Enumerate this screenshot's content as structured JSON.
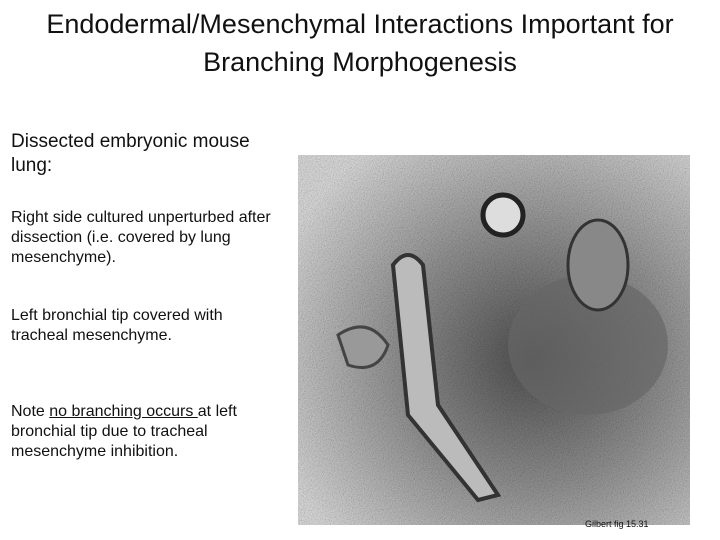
{
  "slide": {
    "title_lines": [
      "Endodermal/Mesenchymal Interactions Important for",
      "Branching Morphogenesis"
    ],
    "intro": "Dissected embryonic mouse lung:",
    "paragraphs": [
      "Right side cultured unperturbed after dissection (i.e. covered by lung mesenchyme).",
      "Left bronchial tip covered with tracheal mesenchyme."
    ],
    "note": {
      "before": "Note ",
      "underlined": "no branching occurs ",
      "after": "at left bronchial tip due to tracheal mesenchyme inhibition."
    },
    "figure": {
      "caption": "Gilbert fig 15.31"
    }
  }
}
